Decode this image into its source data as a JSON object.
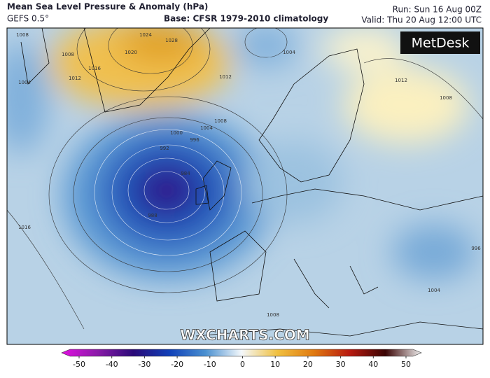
{
  "header": {
    "title": "Mean Sea Level Pressure & Anomaly (hPa)",
    "model": "GEFS 0.5°",
    "base": "Base: CFSR 1979-2010 climatology",
    "run": "Run: Sun 16 Aug 00Z",
    "valid": "Valid: Thu 20 Aug 12:00 UTC"
  },
  "logo": "MetDesk",
  "watermark": "WXCHARTS.COM",
  "isobar_labels": [
    "1024",
    "1028",
    "1020",
    "1016",
    "1012",
    "1008",
    "1008",
    "1004",
    "1012",
    "1004",
    "1008",
    "1004",
    "1000",
    "996",
    "992",
    "984",
    "988",
    "1016",
    "1012",
    "1008",
    "1004",
    "1008",
    "996"
  ],
  "colorbar": {
    "lim": [
      -50,
      50
    ],
    "ticks": [
      -50,
      -40,
      -30,
      -20,
      -10,
      0,
      10,
      20,
      30,
      40,
      50
    ]
  }
}
